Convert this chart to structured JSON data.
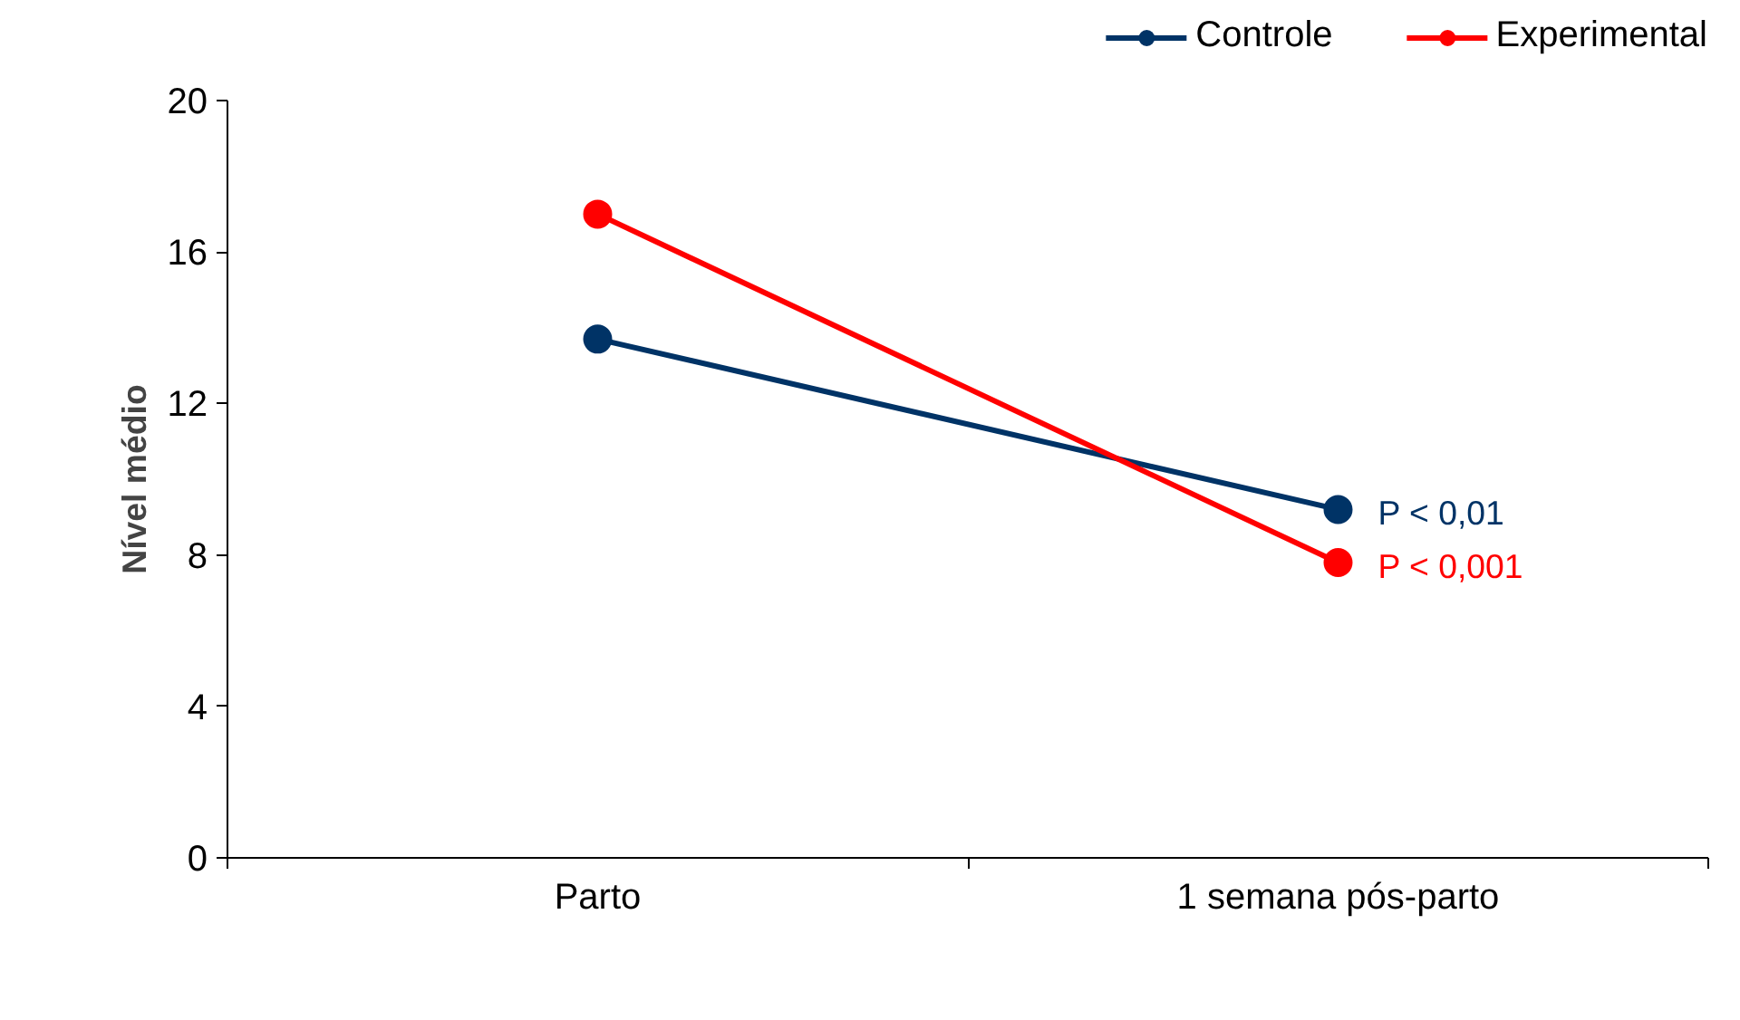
{
  "chart_data": {
    "type": "line",
    "categories": [
      "Parto",
      "1 semana pós-parto"
    ],
    "ylabel": "Nível médio",
    "ylim": [
      0,
      20
    ],
    "yticks": [
      0,
      4,
      8,
      12,
      16,
      20
    ],
    "grid": false,
    "legend": "top right",
    "marker": "circle",
    "line_style": "solid",
    "series": [
      {
        "name": "Controle",
        "color": "#003366",
        "values": [
          13.7,
          9.2
        ]
      },
      {
        "name": "Experimental",
        "color": "#ff0000",
        "values": [
          17.0,
          7.8
        ]
      }
    ],
    "annotations": [
      {
        "text": "P < 0,01",
        "x": "1 semana pós-parto",
        "y": 9.2
      },
      {
        "text": "P < 0,001",
        "x": "1 semana pós-parto",
        "y": 7.8
      }
    ]
  }
}
